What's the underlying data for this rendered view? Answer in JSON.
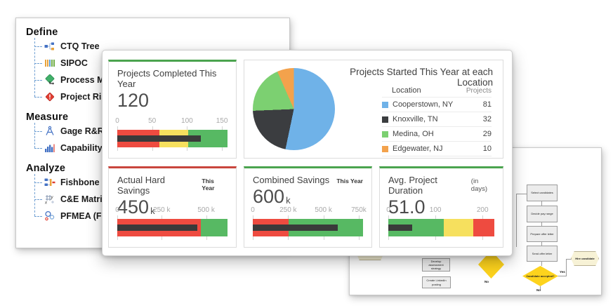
{
  "colors": {
    "red": "#ee4b40",
    "yellow": "#f6e05e",
    "green": "#57b963",
    "bar": "#3a3a3a",
    "accent_green": "#4ba44f",
    "accent_red": "#c9463d"
  },
  "tree_panel": {
    "sections": [
      {
        "label": "Define",
        "items": [
          {
            "label": "CTQ Tree",
            "icon": "ctq-tree-icon"
          },
          {
            "label": "SIPOC",
            "icon": "sipoc-icon"
          },
          {
            "label": "Process Map",
            "icon": "process-map-icon"
          },
          {
            "label": "Project Risk",
            "icon": "project-risk-icon"
          }
        ]
      },
      {
        "label": "Measure",
        "items": [
          {
            "label": "Gage R&R",
            "icon": "gage-icon"
          },
          {
            "label": "Capability",
            "icon": "capability-icon"
          }
        ]
      },
      {
        "label": "Analyze",
        "items": [
          {
            "label": "Fishbone",
            "icon": "fishbone-icon"
          },
          {
            "label": "C&E Matrix",
            "icon": "ce-matrix-icon"
          },
          {
            "label": "PFMEA (FMEA)",
            "icon": "pfmea-icon"
          }
        ]
      }
    ]
  },
  "dashboard": {
    "tiles": [
      {
        "accent": "green",
        "title": "Projects Completed This Year",
        "value": "120",
        "chart": {
          "type": "bullet",
          "max": 158,
          "bar": 120,
          "ticks": [
            {
              "v": 0,
              "label": "0"
            },
            {
              "v": 50,
              "label": "50"
            },
            {
              "v": 100,
              "label": "100"
            },
            {
              "v": 150,
              "label": "150"
            }
          ],
          "zones": [
            {
              "color": "red",
              "from": 0,
              "to": 60
            },
            {
              "color": "yellow",
              "from": 60,
              "to": 102
            },
            {
              "color": "green",
              "from": 102,
              "to": 158
            }
          ]
        }
      },
      {
        "accent": "none",
        "title": "Projects Started This Year at each Location",
        "legend_headers": {
          "location": "Location",
          "projects": "Projects"
        },
        "chart": {
          "type": "pie",
          "slices": [
            {
              "label": "Cooperstown, NY",
              "value": 81,
              "color": "#6fb2e8"
            },
            {
              "label": "Knoxville, TN",
              "value": 32,
              "color": "#3b3d40"
            },
            {
              "label": "Medina, OH",
              "value": 29,
              "color": "#7cd071"
            },
            {
              "label": "Edgewater, NJ",
              "value": 10,
              "color": "#f3a24c"
            }
          ]
        }
      },
      {
        "accent": "red",
        "title": "Actual Hard Savings",
        "subtitle": "This Year",
        "value": "450",
        "unit": "k",
        "chart": {
          "type": "bullet",
          "max": 620,
          "bar": 450,
          "ticks": [
            {
              "v": 0,
              "label": "0"
            },
            {
              "v": 250,
              "label": "250 k"
            },
            {
              "v": 500,
              "label": "500 k"
            }
          ],
          "zones": [
            {
              "color": "red",
              "from": 0,
              "to": 470
            },
            {
              "color": "green",
              "from": 470,
              "to": 620
            }
          ]
        }
      },
      {
        "accent": "green",
        "title": "Combined Savings",
        "subtitle": "This Year",
        "value": "600",
        "unit": "k",
        "chart": {
          "type": "bullet",
          "max": 780,
          "bar": 600,
          "ticks": [
            {
              "v": 0,
              "label": "0"
            },
            {
              "v": 250,
              "label": "250 k"
            },
            {
              "v": 500,
              "label": "500 k"
            },
            {
              "v": 750,
              "label": "750k"
            }
          ],
          "zones": [
            {
              "color": "red",
              "from": 0,
              "to": 252
            },
            {
              "color": "green",
              "from": 252,
              "to": 780
            }
          ]
        }
      },
      {
        "accent": "green",
        "title": "Avg. Project Duration",
        "subtitle": "(in days)",
        "value": "51.0",
        "chart": {
          "type": "bullet",
          "max": 225,
          "bar": 51,
          "ticks": [
            {
              "v": 0,
              "label": "0"
            },
            {
              "v": 100,
              "label": "100"
            },
            {
              "v": 200,
              "label": "200"
            }
          ],
          "zones": [
            {
              "color": "green",
              "from": 0,
              "to": 117
            },
            {
              "color": "yellow",
              "from": 117,
              "to": 180
            },
            {
              "color": "red",
              "from": 180,
              "to": 225
            }
          ]
        }
      }
    ]
  },
  "flowchart": {
    "steps": [
      "Select candidates",
      "Decide pay range",
      "Prepare offer letter",
      "Send offer letter"
    ],
    "decision": "Candidate accepted?",
    "terminator": "Hire candidate",
    "side_steps": [
      "Develop assessment strategy",
      "Create LinkedIn posting"
    ],
    "yes_label": "Yes",
    "no_label": "No"
  }
}
